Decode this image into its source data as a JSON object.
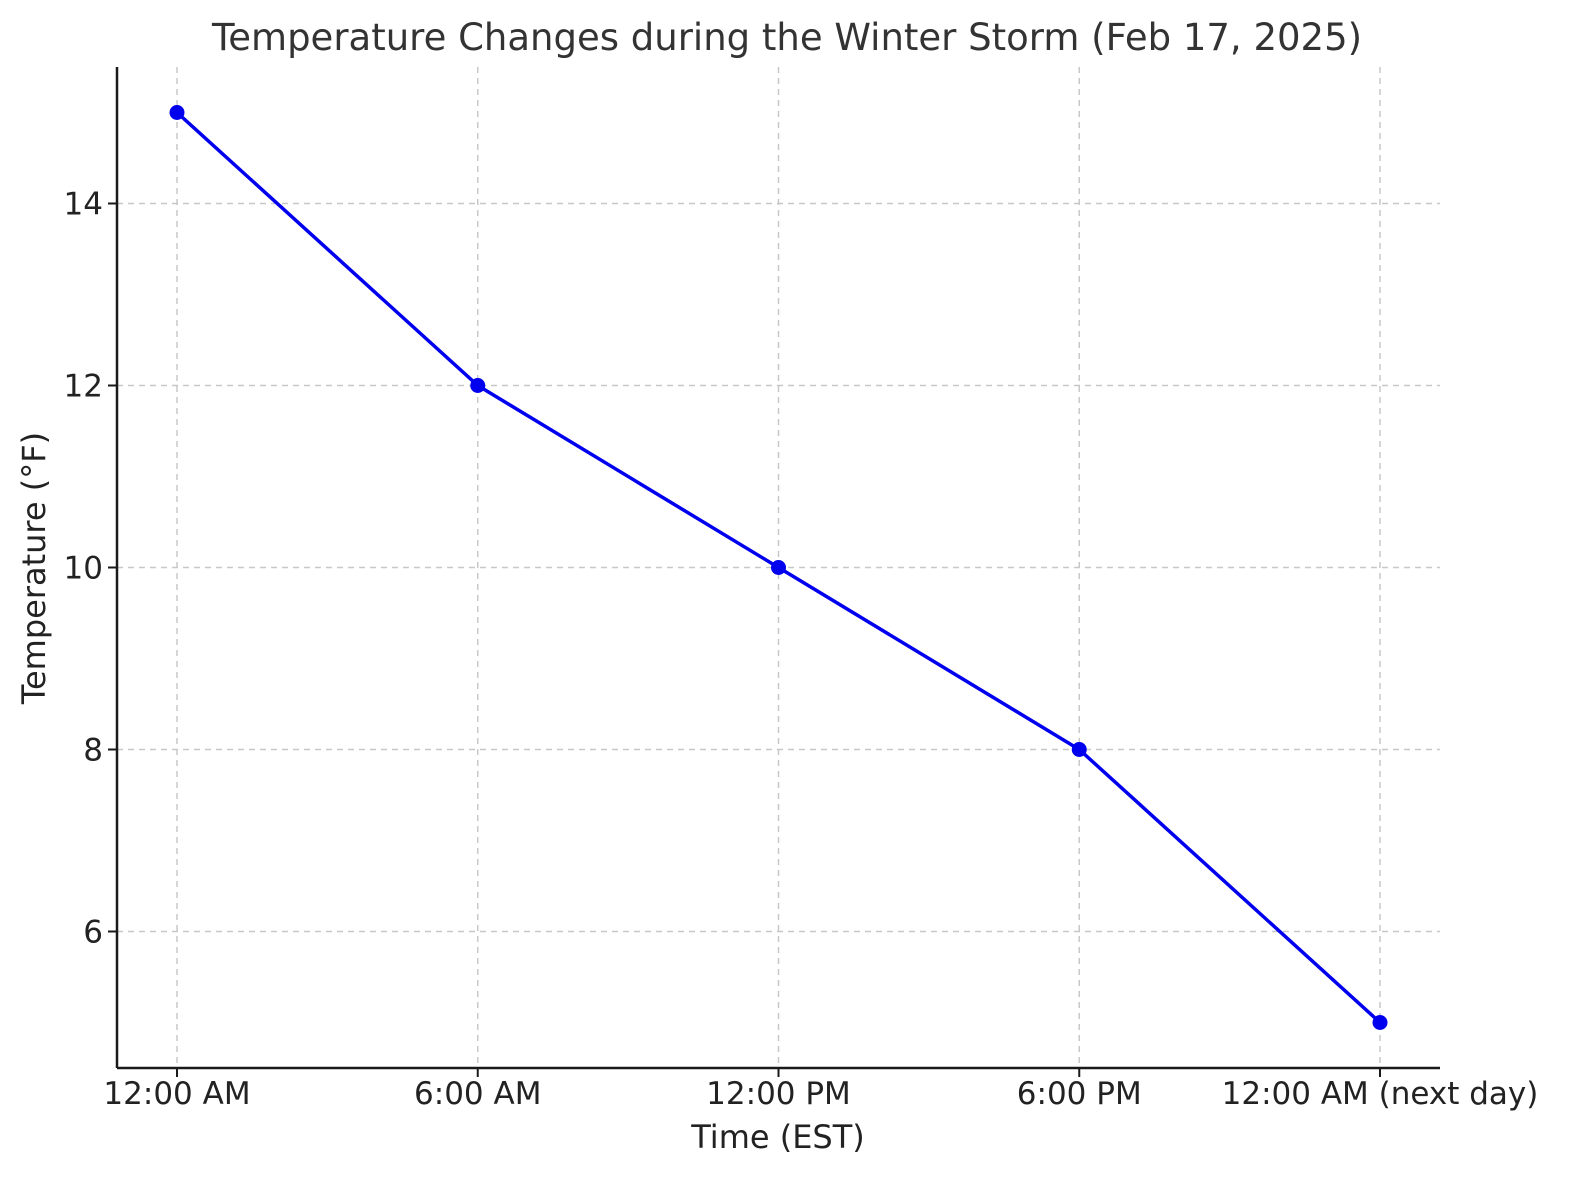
{
  "chart_data": {
    "type": "line",
    "title": "Temperature Changes during the Winter Storm (Feb 17, 2025)",
    "xlabel": "Time (EST)",
    "ylabel": "Temperature (°F)",
    "categories": [
      "12:00 AM",
      "6:00 AM",
      "12:00 PM",
      "6:00 PM",
      "12:00 AM (next day)"
    ],
    "series": [
      {
        "values": [
          15,
          12,
          10,
          8,
          5
        ],
        "color": "#0000ee",
        "marker": "circle"
      }
    ],
    "ylim": [
      4.5,
      15.5
    ],
    "yticks": [
      6,
      8,
      10,
      12,
      14
    ],
    "grid": true,
    "grid_style": "dashed",
    "legend": "none"
  }
}
